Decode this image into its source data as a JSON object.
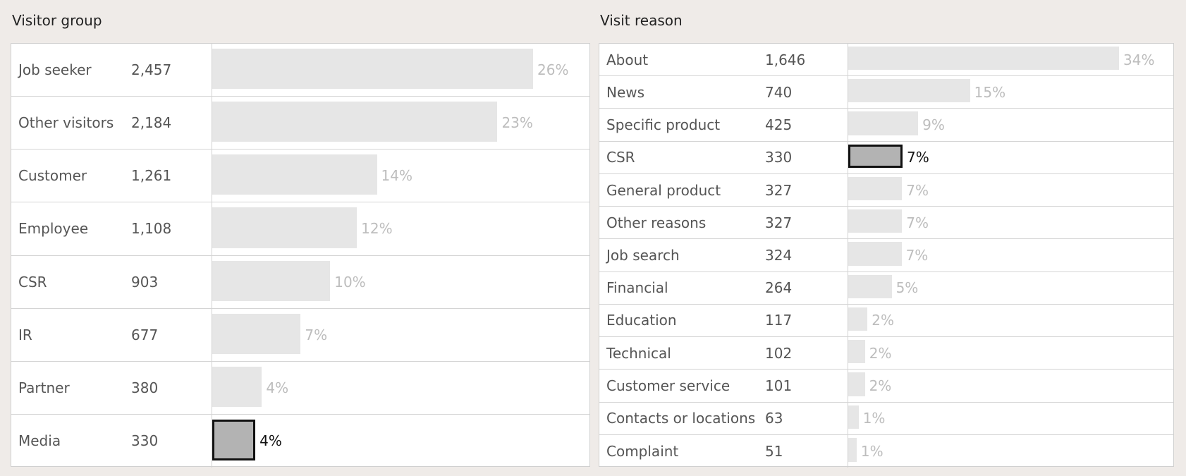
{
  "colors": {
    "background": "#efebe8",
    "bar": "#e6e6e6",
    "bar_selected": "#b3b3b3",
    "selected_border": "#111111",
    "pct_text": "#bdbdbd"
  },
  "chart_data": [
    {
      "type": "bar",
      "orientation": "horizontal",
      "title": "Visitor group",
      "categories": [
        "Job seeker",
        "Other visitors",
        "Customer",
        "Employee",
        "CSR",
        "IR",
        "Partner",
        "Media"
      ],
      "value_labels": [
        "2,457",
        "2,184",
        "1,261",
        "1,108",
        "903",
        "677",
        "380",
        "330"
      ],
      "values": [
        2457,
        2184,
        1261,
        1108,
        903,
        677,
        380,
        330
      ],
      "percent_labels": [
        "26%",
        "23%",
        "14%",
        "12%",
        "10%",
        "7%",
        "4%",
        "4%"
      ],
      "selected_index": 7
    },
    {
      "type": "bar",
      "orientation": "horizontal",
      "title": "Visit reason",
      "categories": [
        "About",
        "News",
        "Specific product",
        "CSR",
        "General product",
        "Other reasons",
        "Job search",
        "Financial",
        "Education",
        "Technical",
        "Customer service",
        "Contacts or locations",
        "Complaint"
      ],
      "value_labels": [
        "1,646",
        "740",
        "425",
        "330",
        "327",
        "327",
        "324",
        "264",
        "117",
        "102",
        "101",
        "63",
        "51"
      ],
      "values": [
        1646,
        740,
        425,
        330,
        327,
        327,
        324,
        264,
        117,
        102,
        101,
        63,
        51
      ],
      "percent_labels": [
        "34%",
        "15%",
        "9%",
        "7%",
        "7%",
        "7%",
        "7%",
        "5%",
        "2%",
        "2%",
        "2%",
        "1%",
        "1%"
      ],
      "selected_index": 3
    }
  ]
}
